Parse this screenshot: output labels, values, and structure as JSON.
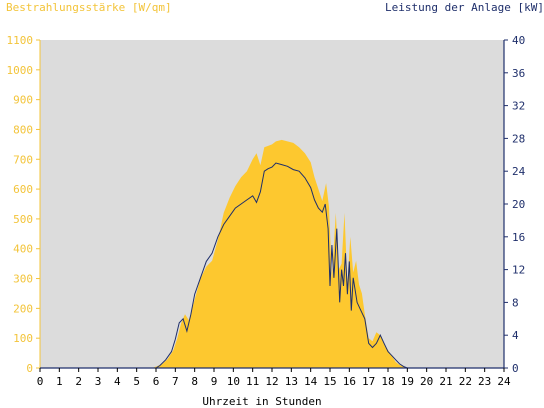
{
  "chart_data": {
    "type": "area",
    "title_left": "Bestrahlungsstärke [W/qm]",
    "title_right": "Leistung der Anlage [kW]",
    "xlabel": "Uhrzeit in Stunden",
    "xlim": [
      0,
      24
    ],
    "ylim_left": [
      0,
      1100
    ],
    "ylim_right": [
      0,
      40
    ],
    "x_ticks": [
      "0",
      "1",
      "2",
      "3",
      "4",
      "5",
      "6",
      "7",
      "8",
      "9",
      "10",
      "11",
      "12",
      "13",
      "14",
      "15",
      "16",
      "17",
      "18",
      "19",
      "20",
      "21",
      "22",
      "23",
      "24"
    ],
    "y_left_ticks": [
      "0",
      "100",
      "200",
      "300",
      "400",
      "500",
      "600",
      "700",
      "800",
      "900",
      "1000",
      "1100"
    ],
    "y_right_ticks": [
      "0",
      "4",
      "8",
      "12",
      "16",
      "20",
      "24",
      "28",
      "32",
      "36",
      "40"
    ],
    "grid": false,
    "colors": {
      "plot_bg": "#dcdcdc",
      "irradiance_fill": "#fdc82f",
      "power_line": "#1f2f6b",
      "left_axis": "#f3c43a",
      "right_axis": "#1f2f6b",
      "frame": "#1f2f6b"
    },
    "series": [
      {
        "axis": "left",
        "style": "area",
        "x": [
          0,
          5.8,
          6.0,
          6.3,
          6.6,
          6.9,
          7.1,
          7.3,
          7.5,
          7.7,
          8.0,
          8.3,
          8.6,
          8.9,
          9.2,
          9.5,
          9.8,
          10.1,
          10.4,
          10.7,
          11.0,
          11.2,
          11.4,
          11.6,
          11.8,
          12.0,
          12.2,
          12.5,
          12.8,
          13.1,
          13.4,
          13.7,
          14.0,
          14.2,
          14.4,
          14.6,
          14.8,
          14.95,
          15.1,
          15.3,
          15.45,
          15.6,
          15.75,
          15.9,
          16.05,
          16.2,
          16.35,
          16.5,
          16.65,
          16.8,
          17.0,
          17.2,
          17.4,
          17.6,
          17.8,
          18.0,
          18.2,
          18.4,
          18.6,
          18.8,
          19.0,
          19.2,
          24
        ],
        "y": [
          0,
          0,
          5,
          12,
          30,
          60,
          100,
          150,
          180,
          160,
          230,
          300,
          340,
          360,
          430,
          520,
          570,
          610,
          640,
          660,
          700,
          720,
          680,
          740,
          745,
          750,
          760,
          765,
          760,
          755,
          740,
          720,
          690,
          640,
          600,
          560,
          620,
          540,
          300,
          520,
          330,
          350,
          520,
          280,
          440,
          320,
          360,
          280,
          250,
          180,
          100,
          90,
          120,
          110,
          80,
          60,
          40,
          20,
          10,
          5,
          0,
          0,
          0
        ]
      },
      {
        "axis": "right",
        "style": "line",
        "x": [
          0,
          6.0,
          6.2,
          6.5,
          6.8,
          7.0,
          7.2,
          7.4,
          7.6,
          7.8,
          8.0,
          8.3,
          8.6,
          8.9,
          9.2,
          9.5,
          9.8,
          10.1,
          10.4,
          10.7,
          11.0,
          11.2,
          11.4,
          11.6,
          11.8,
          12.0,
          12.2,
          12.5,
          12.8,
          13.1,
          13.4,
          13.7,
          14.0,
          14.2,
          14.4,
          14.6,
          14.75,
          14.9,
          15.0,
          15.1,
          15.2,
          15.35,
          15.5,
          15.6,
          15.7,
          15.8,
          15.9,
          16.0,
          16.1,
          16.2,
          16.4,
          16.6,
          16.8,
          17.0,
          17.2,
          17.4,
          17.6,
          17.8,
          18.0,
          18.2,
          18.4,
          18.6,
          18.8,
          19.0,
          19.2,
          24
        ],
        "y": [
          0,
          0,
          0.3,
          1,
          2,
          3.5,
          5.5,
          6,
          4.5,
          6.5,
          9,
          11,
          13,
          14,
          16,
          17.5,
          18.5,
          19.5,
          20,
          20.5,
          21,
          20.2,
          21.5,
          24,
          24.3,
          24.5,
          25,
          24.8,
          24.6,
          24.2,
          24,
          23.2,
          22,
          20.5,
          19.5,
          19,
          20,
          17,
          10,
          15,
          11,
          17,
          8,
          12,
          10,
          14,
          9,
          13,
          7,
          11,
          8,
          7,
          6,
          3,
          2.5,
          3,
          4,
          3,
          2,
          1.5,
          1,
          0.5,
          0.2,
          0,
          0,
          0
        ]
      }
    ]
  }
}
